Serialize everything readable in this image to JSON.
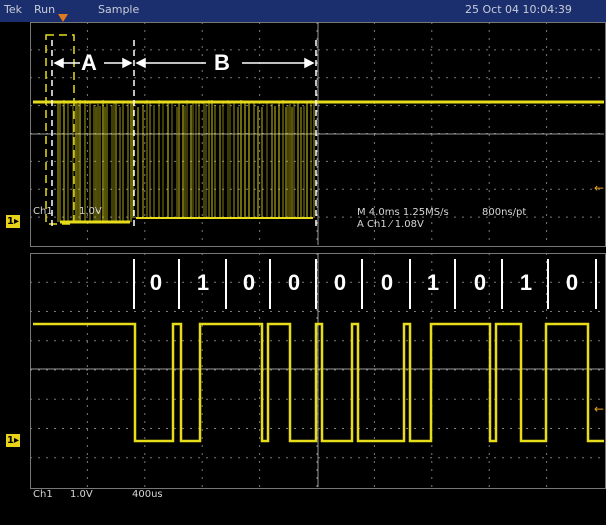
{
  "status_bar": {
    "brand": "Tek",
    "mode": "Run",
    "acq": "Sample",
    "datetime": "25 Oct 04 10:04:39"
  },
  "upper": {
    "ch_label": "Ch1",
    "ch_scale": "1.0V",
    "timebase": "M 4.0ms 1.25MS/s",
    "point_rate": "800ns/pt",
    "trigger": "A  Ch1  ⁄  1.08V",
    "segment_a": "A",
    "segment_b": "B"
  },
  "lower": {
    "bits": [
      "0",
      "1",
      "0",
      "0",
      "0",
      "0",
      "1",
      "0",
      "1",
      "0"
    ],
    "ch_label": "Ch1",
    "ch_scale": "1.0V",
    "timebase": "400us"
  },
  "colors": {
    "trace": "#e6dc1a",
    "grid": "#8a8a8a",
    "status_bg": "#1b2f6e"
  }
}
